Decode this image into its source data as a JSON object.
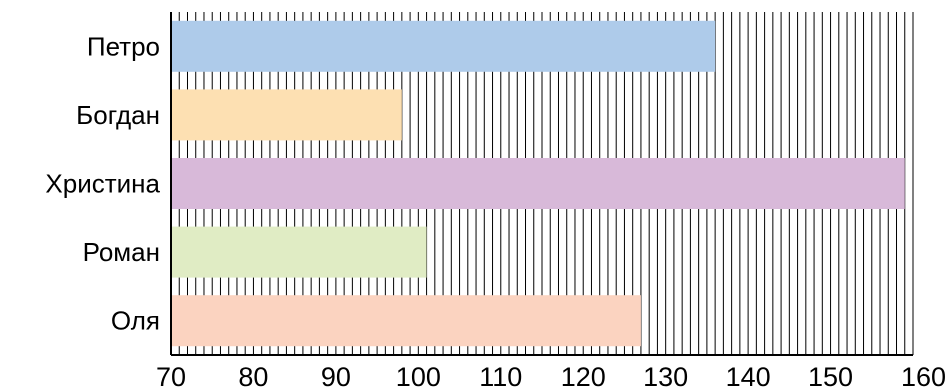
{
  "chart_data": {
    "type": "bar",
    "orientation": "horizontal",
    "categories": [
      "Петро",
      "Богдан",
      "Христина",
      "Роман",
      "Оля"
    ],
    "values": [
      136,
      98,
      159,
      101,
      127
    ],
    "colors": [
      "#aecbea",
      "#fde0b2",
      "#d8b9d9",
      "#e0ecc4",
      "#fbd3c0"
    ],
    "title": "",
    "xlabel": "",
    "ylabel": "",
    "xlim": [
      70,
      160
    ],
    "x_ticks": [
      "70",
      "80",
      "90",
      "100",
      "110",
      "120",
      "130",
      "140",
      "150",
      "160"
    ],
    "minor_step": 1,
    "grid": "vertical lines every unit"
  }
}
